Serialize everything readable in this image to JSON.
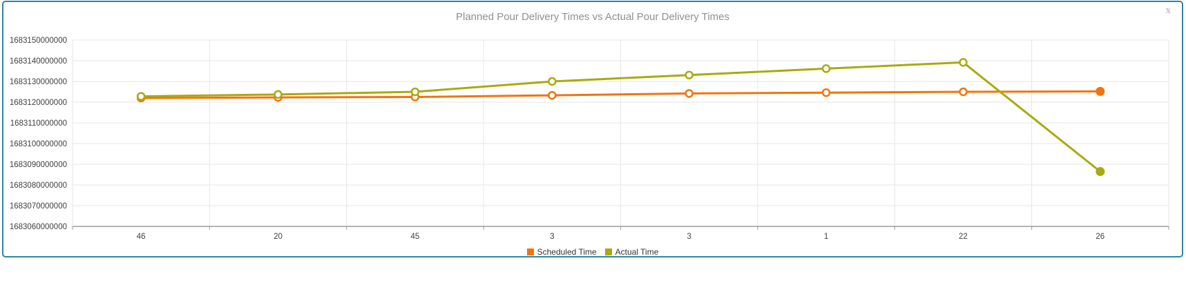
{
  "panel": {
    "close_label": "x"
  },
  "chart_data": {
    "type": "line",
    "title": "Planned Pour Delivery Times vs Actual Pour Delivery Times",
    "categories": [
      "46",
      "20",
      "45",
      "3",
      "3",
      "1",
      "22",
      "26"
    ],
    "series": [
      {
        "name": "Scheduled Time",
        "color": "#f2740d",
        "values": [
          1683122000000,
          1683122300000,
          1683122500000,
          1683123300000,
          1683124200000,
          1683124600000,
          1683125000000,
          1683125200000
        ]
      },
      {
        "name": "Actual Time",
        "color": "#a8aa0f",
        "values": [
          1683122800000,
          1683123700000,
          1683125000000,
          1683130000000,
          1683133100000,
          1683136200000,
          1683139200000,
          1683086500000
        ]
      }
    ],
    "xlabel": "",
    "ylabel": "",
    "ylim": [
      1683060000000,
      1683150000000
    ],
    "y_tick_step": 10000000,
    "y_ticks": [
      "1683150000000",
      "1683140000000",
      "1683130000000",
      "1683120000000",
      "1683110000000",
      "1683100000000",
      "1683090000000",
      "1683080000000",
      "1683070000000",
      "1683060000000"
    ],
    "grid": true,
    "legend_position": "bottom-center",
    "marker_style": "hollow-circle-except-last-solid"
  },
  "colors": {
    "panel_border": "#2e85a5",
    "grid_line": "#e6e6e6",
    "axis_line": "#9c9c9c",
    "title_text": "#8f8f8f",
    "tick_text": "#3f3f3f",
    "legend_text": "#333333",
    "close_icon": "#c8c0c6"
  }
}
